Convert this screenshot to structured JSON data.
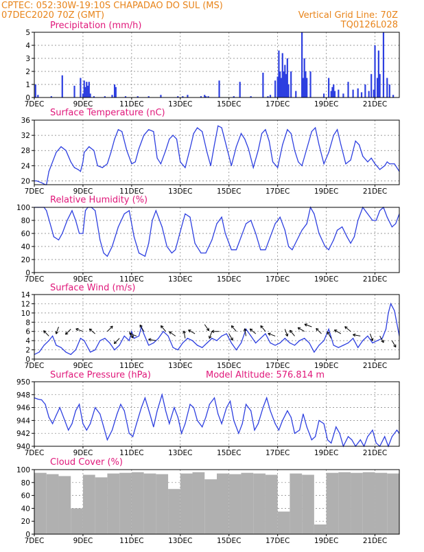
{
  "header": {
    "left_line1": "CPTEC:   052:30W-19:10S   CHAPADAO DO SUL (MS)",
    "left_line2": "07DEC2020 70Z (GMT)",
    "right_line1": "Vertical Grid Line: 70Z",
    "right_line2": "TQ0126L028"
  },
  "x_axis": {
    "ticks": [
      "7DEC",
      "9DEC",
      "11DEC",
      "13DEC",
      "15DEC",
      "17DEC",
      "19DEC",
      "21DEC"
    ],
    "tick_days": [
      0,
      2,
      4,
      6,
      8,
      10,
      12,
      14
    ],
    "range_days": [
      0,
      15
    ]
  },
  "colors": {
    "header": "#e8841a",
    "title": "#e0177a",
    "series": "#2d3fe0",
    "cloud": "#b0b0b0"
  },
  "chart_data": [
    {
      "id": "precip",
      "type": "bar",
      "title": "Precipitation (mm/h)",
      "ylim": [
        0,
        5
      ],
      "yticks": [
        0,
        1,
        2,
        3,
        4,
        5
      ],
      "grid": true,
      "x_days": [
        0.05,
        0.15,
        0.7,
        1.15,
        1.65,
        1.9,
        2.0,
        2.05,
        2.1,
        2.15,
        2.2,
        2.25,
        2.3,
        2.45,
        2.9,
        3.2,
        3.3,
        3.35,
        3.75,
        4.25,
        4.7,
        5.2,
        5.9,
        6.1,
        6.3,
        6.85,
        7.0,
        7.05,
        7.15,
        7.6,
        8.2,
        8.45,
        8.9,
        9.4,
        9.6,
        9.7,
        9.9,
        10.0,
        10.05,
        10.1,
        10.15,
        10.2,
        10.25,
        10.3,
        10.35,
        10.4,
        10.45,
        10.55,
        10.75,
        11.0,
        11.05,
        11.1,
        11.15,
        11.2,
        11.35,
        11.9,
        12.1,
        12.2,
        12.25,
        12.3,
        12.35,
        12.5,
        12.7,
        12.9,
        13.1,
        13.3,
        13.45,
        13.6,
        13.75,
        13.85,
        13.95,
        14.0,
        14.1,
        14.15,
        14.2,
        14.35,
        14.5,
        14.6,
        14.75
      ],
      "values": [
        1.0,
        0.2,
        0.1,
        1.7,
        0.9,
        1.5,
        0.3,
        1.3,
        0.8,
        1.2,
        0.9,
        1.2,
        0.3,
        0.1,
        0.1,
        0.2,
        1.0,
        0.8,
        0.1,
        0.1,
        0.1,
        0.2,
        0.1,
        0.1,
        0.2,
        0.1,
        0.2,
        0.1,
        0.1,
        1.3,
        0.1,
        1.2,
        0.1,
        1.9,
        0.1,
        0.2,
        1.3,
        1.6,
        3.6,
        2.0,
        1.5,
        3.4,
        2.0,
        2.5,
        1.8,
        3.0,
        1.0,
        2.0,
        0.5,
        5.0,
        1.5,
        3.0,
        2.0,
        1.5,
        2.0,
        0.3,
        1.5,
        0.5,
        0.8,
        1.0,
        0.5,
        0.6,
        0.3,
        1.2,
        0.6,
        0.7,
        0.4,
        1.0,
        0.5,
        1.8,
        0.6,
        4.0,
        1.5,
        3.6,
        1.8,
        5.0,
        1.5,
        1.0,
        0.2
      ],
      "xticks": [
        "7DEC",
        "9DEC",
        "11DEC",
        "13DEC",
        "15DEC",
        "17DEC",
        "19DEC",
        "21DEC"
      ]
    },
    {
      "id": "temp",
      "type": "line",
      "title": "Surface Temperature (nC)",
      "ylim": [
        19,
        36
      ],
      "yticks": [
        20,
        24,
        28,
        32,
        36
      ],
      "grid": true,
      "x": [
        0,
        0.1,
        0.3,
        0.45,
        0.5,
        0.6,
        0.75,
        0.9,
        1.1,
        1.3,
        1.5,
        1.65,
        1.8,
        1.9,
        2.0,
        2.05,
        2.25,
        2.45,
        2.6,
        2.8,
        3.0,
        3.15,
        3.3,
        3.45,
        3.6,
        3.8,
        4.0,
        4.15,
        4.3,
        4.5,
        4.7,
        4.9,
        5.05,
        5.2,
        5.4,
        5.55,
        5.7,
        5.85,
        6.0,
        6.2,
        6.4,
        6.55,
        6.7,
        6.9,
        7.1,
        7.25,
        7.4,
        7.55,
        7.7,
        7.9,
        8.1,
        8.3,
        8.5,
        8.65,
        8.8,
        9.0,
        9.2,
        9.35,
        9.5,
        9.65,
        9.8,
        10.0,
        10.2,
        10.4,
        10.55,
        10.7,
        10.85,
        11.0,
        11.2,
        11.4,
        11.55,
        11.7,
        11.9,
        12.1,
        12.3,
        12.45,
        12.6,
        12.8,
        13.0,
        13.2,
        13.35,
        13.5,
        13.7,
        13.85,
        14.0,
        14.2,
        14.4,
        14.5,
        14.6,
        14.8,
        15.0
      ],
      "y": [
        20.0,
        20.0,
        19.5,
        19.0,
        19.0,
        22.5,
        25.0,
        27.5,
        29.0,
        28.0,
        25.0,
        23.5,
        23.0,
        22.5,
        25.0,
        27.5,
        29.0,
        28.0,
        24.0,
        23.5,
        24.5,
        27.5,
        31.0,
        33.5,
        33.0,
        28.0,
        24.5,
        25.0,
        28.5,
        32.0,
        33.5,
        33.0,
        26.0,
        24.5,
        28.0,
        31.0,
        32.0,
        31.0,
        25.0,
        23.5,
        28.5,
        32.5,
        34.0,
        33.0,
        27.5,
        24.0,
        29.5,
        34.5,
        34.0,
        29.0,
        24.0,
        29.0,
        32.5,
        31.0,
        28.5,
        23.5,
        28.0,
        32.5,
        33.5,
        30.5,
        25.0,
        23.5,
        29.5,
        33.5,
        32.5,
        28.0,
        25.0,
        24.0,
        28.5,
        33.0,
        34.0,
        29.5,
        24.5,
        27.5,
        32.0,
        33.5,
        29.5,
        24.5,
        25.5,
        30.5,
        29.5,
        26.5,
        25.0,
        26.0,
        24.5,
        23.0,
        24.0,
        25.0,
        24.5,
        24.5,
        22.5
      ]
    },
    {
      "id": "rh",
      "type": "line",
      "title": "Relative Humidity (%)",
      "ylim": [
        0,
        100
      ],
      "yticks": [
        0,
        20,
        40,
        60,
        80,
        100
      ],
      "grid": true,
      "x": [
        0,
        0.15,
        0.4,
        0.5,
        0.65,
        0.8,
        1.0,
        1.15,
        1.35,
        1.55,
        1.7,
        1.85,
        2.0,
        2.1,
        2.2,
        2.35,
        2.5,
        2.7,
        2.85,
        3.0,
        3.2,
        3.45,
        3.7,
        3.9,
        4.1,
        4.3,
        4.55,
        4.7,
        4.85,
        5.0,
        5.25,
        5.45,
        5.65,
        5.8,
        6.05,
        6.2,
        6.4,
        6.6,
        6.85,
        7.05,
        7.3,
        7.5,
        7.7,
        7.85,
        8.1,
        8.3,
        8.5,
        8.7,
        8.9,
        9.1,
        9.3,
        9.5,
        9.7,
        9.9,
        10.1,
        10.3,
        10.45,
        10.6,
        10.8,
        11.0,
        11.2,
        11.35,
        11.5,
        11.7,
        11.95,
        12.1,
        12.3,
        12.45,
        12.65,
        12.85,
        13.0,
        13.15,
        13.3,
        13.5,
        13.7,
        13.9,
        14.05,
        14.2,
        14.35,
        14.5,
        14.7,
        14.85,
        15.0
      ],
      "y": [
        100,
        100,
        100,
        95,
        75,
        55,
        50,
        60,
        80,
        95,
        80,
        60,
        60,
        95,
        100,
        100,
        95,
        50,
        30,
        25,
        40,
        70,
        90,
        95,
        55,
        30,
        25,
        45,
        80,
        95,
        70,
        40,
        30,
        35,
        70,
        90,
        85,
        45,
        30,
        30,
        50,
        75,
        85,
        60,
        35,
        35,
        55,
        75,
        80,
        60,
        35,
        35,
        55,
        75,
        85,
        65,
        40,
        35,
        50,
        65,
        75,
        100,
        90,
        60,
        40,
        35,
        50,
        65,
        70,
        55,
        45,
        55,
        80,
        100,
        90,
        80,
        80,
        95,
        100,
        85,
        70,
        75,
        90
      ]
    },
    {
      "id": "wind",
      "type": "line",
      "title": "Surface Wind (m/s)",
      "ylim": [
        0,
        14
      ],
      "yticks": [
        0,
        2,
        4,
        6,
        8,
        10,
        12,
        14
      ],
      "grid": true,
      "x": [
        0,
        0.2,
        0.4,
        0.6,
        0.75,
        0.9,
        1.1,
        1.3,
        1.5,
        1.7,
        1.9,
        2.05,
        2.3,
        2.5,
        2.7,
        2.9,
        3.1,
        3.3,
        3.5,
        3.7,
        3.9,
        4.0,
        4.1,
        4.3,
        4.4,
        4.5,
        4.7,
        4.9,
        5.1,
        5.3,
        5.5,
        5.7,
        5.9,
        6.1,
        6.3,
        6.5,
        6.7,
        6.9,
        7.1,
        7.3,
        7.5,
        7.7,
        7.9,
        8.1,
        8.3,
        8.5,
        8.7,
        8.9,
        9.1,
        9.3,
        9.5,
        9.7,
        9.9,
        10.1,
        10.3,
        10.5,
        10.7,
        10.9,
        11.1,
        11.3,
        11.5,
        11.7,
        11.9,
        12.1,
        12.3,
        12.5,
        12.7,
        12.9,
        13.1,
        13.3,
        13.5,
        13.7,
        13.9,
        14.1,
        14.3,
        14.45,
        14.55,
        14.65,
        14.8,
        15.0
      ],
      "y": [
        1.0,
        1.5,
        3.0,
        4.0,
        5.0,
        3.0,
        2.5,
        1.5,
        1.0,
        2.0,
        4.5,
        4.0,
        1.5,
        2.0,
        4.0,
        4.5,
        3.5,
        2.0,
        3.0,
        5.0,
        4.0,
        6.0,
        4.5,
        5.0,
        7.0,
        5.5,
        3.0,
        3.5,
        4.5,
        6.0,
        5.0,
        2.5,
        2.0,
        3.5,
        4.5,
        4.0,
        3.0,
        2.5,
        3.5,
        4.5,
        4.0,
        5.0,
        5.5,
        3.5,
        2.0,
        3.5,
        6.5,
        5.0,
        3.5,
        4.5,
        5.5,
        3.5,
        3.0,
        3.5,
        4.5,
        3.5,
        3.0,
        4.0,
        4.5,
        3.5,
        1.5,
        3.0,
        4.0,
        6.5,
        3.0,
        2.5,
        3.0,
        3.5,
        4.5,
        2.5,
        4.0,
        5.0,
        3.5,
        4.0,
        4.5,
        6.5,
        10.0,
        12.0,
        10.5,
        5.0
      ]
    },
    {
      "id": "pres",
      "type": "line",
      "title": "Surface Pressure (hPa)",
      "annotation": "Model Altitude: 576.814 m",
      "ylim": [
        940,
        950
      ],
      "yticks": [
        940,
        942,
        944,
        946,
        948,
        950
      ],
      "grid": true,
      "x": [
        0,
        0.15,
        0.3,
        0.45,
        0.6,
        0.75,
        0.9,
        1.05,
        1.2,
        1.4,
        1.55,
        1.7,
        1.85,
        2.0,
        2.15,
        2.3,
        2.5,
        2.7,
        2.85,
        3.0,
        3.2,
        3.4,
        3.55,
        3.7,
        3.9,
        4.05,
        4.2,
        4.4,
        4.55,
        4.75,
        4.9,
        5.05,
        5.25,
        5.4,
        5.55,
        5.75,
        5.9,
        6.05,
        6.2,
        6.4,
        6.55,
        6.7,
        6.9,
        7.05,
        7.2,
        7.4,
        7.55,
        7.7,
        7.9,
        8.05,
        8.2,
        8.4,
        8.55,
        8.7,
        8.9,
        9.05,
        9.2,
        9.4,
        9.55,
        9.7,
        9.9,
        10.05,
        10.2,
        10.4,
        10.55,
        10.7,
        10.9,
        11.05,
        11.2,
        11.4,
        11.55,
        11.7,
        11.9,
        12.05,
        12.2,
        12.4,
        12.55,
        12.7,
        12.9,
        13.05,
        13.2,
        13.4,
        13.55,
        13.7,
        13.9,
        14.05,
        14.2,
        14.4,
        14.55,
        14.7,
        14.9,
        15.0
      ],
      "y": [
        947.5,
        947.3,
        947.2,
        946.5,
        944.5,
        943.5,
        944.8,
        946.0,
        944.5,
        942.5,
        943.5,
        945.5,
        946.5,
        943.5,
        942.5,
        943.5,
        946.0,
        945.0,
        943.0,
        941.0,
        942.5,
        945.0,
        946.5,
        945.5,
        942.0,
        941.5,
        943.5,
        946.0,
        947.5,
        945.0,
        943.0,
        945.5,
        948.0,
        945.5,
        943.5,
        946.0,
        944.5,
        942.0,
        943.5,
        946.5,
        946.0,
        944.0,
        943.0,
        944.5,
        946.5,
        947.5,
        945.0,
        943.5,
        946.0,
        947.0,
        944.0,
        942.0,
        943.5,
        946.5,
        945.5,
        942.5,
        943.5,
        946.0,
        947.5,
        945.5,
        943.5,
        942.5,
        944.0,
        945.5,
        944.5,
        942.0,
        942.5,
        945.0,
        943.0,
        941.0,
        941.5,
        944.0,
        943.5,
        941.0,
        940.5,
        943.0,
        942.0,
        940.0,
        941.5,
        941.0,
        940.0,
        941.0,
        940.0,
        941.5,
        942.5,
        940.5,
        940.0,
        941.5,
        940.0,
        941.5,
        942.5,
        942.0
      ]
    },
    {
      "id": "cloud",
      "type": "bar",
      "title": "Cloud Cover (%)",
      "ylim": [
        0,
        100
      ],
      "yticks": [
        0,
        20,
        40,
        60,
        80,
        100
      ],
      "grid": true,
      "x_days": [
        0.25,
        0.75,
        1.25,
        1.75,
        2.25,
        2.75,
        3.25,
        3.75,
        4.25,
        4.75,
        5.25,
        5.75,
        6.25,
        6.75,
        7.25,
        7.75,
        8.25,
        8.75,
        9.25,
        9.75,
        10.25,
        10.75,
        11.25,
        11.75,
        12.25,
        12.75,
        13.25,
        13.75,
        14.25,
        14.75
      ],
      "values": [
        95,
        93,
        90,
        40,
        92,
        88,
        94,
        95,
        96,
        94,
        93,
        70,
        94,
        96,
        85,
        94,
        93,
        95,
        94,
        92,
        35,
        94,
        92,
        15,
        95,
        96,
        95,
        96,
        95,
        94
      ],
      "xticks": [
        "7DEC",
        "9DEC",
        "11DEC",
        "13DEC",
        "15DEC",
        "17DEC",
        "19DEC",
        "21DEC"
      ]
    }
  ],
  "wind_arrows": {
    "x_days": [
      0.6,
      1.0,
      1.5,
      2.0,
      2.5,
      3.0,
      3.5,
      3.9,
      4.2,
      4.5,
      5.0,
      5.4,
      5.8,
      6.2,
      6.6,
      7.0,
      7.3,
      7.6,
      8.0,
      8.3,
      8.7,
      9.1,
      9.5,
      9.9,
      10.3,
      10.7,
      11.1,
      11.4,
      11.8,
      12.2,
      12.6,
      13.0,
      13.4,
      13.8,
      14.2,
      14.7
    ],
    "y": [
      5.0,
      7.0,
      6.5,
      6.0,
      5.5,
      6.0,
      4.5,
      6.0,
      5.0,
      6.0,
      4.0,
      6.0,
      5.0,
      4.5,
      5.5,
      7.5,
      6.0,
      6.0,
      5.5,
      6.0,
      5.0,
      5.5,
      6.0,
      5.0,
      6.5,
      5.0,
      6.0,
      7.0,
      5.5,
      4.5,
      5.5,
      6.0,
      5.0,
      5.5,
      5.0,
      4.0
    ],
    "angle_deg": [
      135,
      -110,
      -135,
      160,
      140,
      45,
      -135,
      -60,
      160,
      120,
      170,
      130,
      145,
      100,
      150,
      -55,
      -110,
      180,
      -60,
      130,
      100,
      140,
      130,
      160,
      -70,
      130,
      150,
      160,
      135,
      120,
      150,
      140,
      170,
      -70,
      -60,
      -60
    ]
  }
}
